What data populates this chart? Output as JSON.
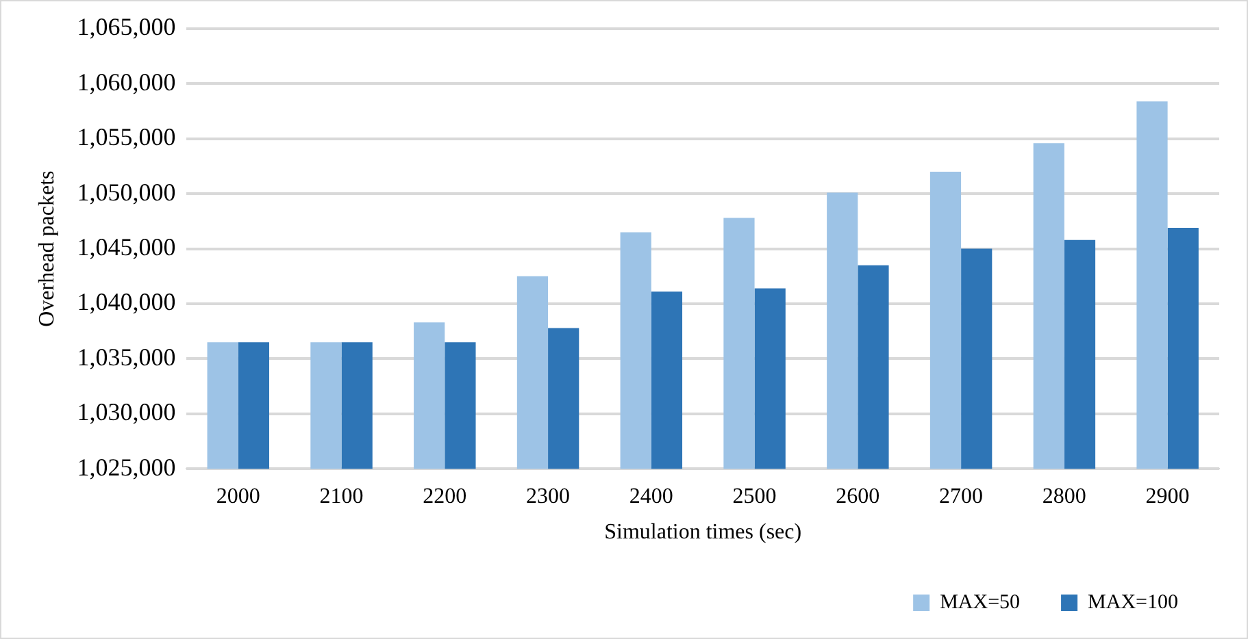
{
  "chart_data": {
    "type": "bar",
    "xlabel": "Simulation times (sec)",
    "ylabel": "Overhead packets",
    "categories": [
      "2000",
      "2100",
      "2200",
      "2300",
      "2400",
      "2500",
      "2600",
      "2700",
      "2800",
      "2900"
    ],
    "series": [
      {
        "name": "MAX=50",
        "color": "#9dc3e6",
        "values": [
          1036500,
          1036500,
          1038300,
          1042500,
          1046500,
          1047800,
          1050100,
          1052000,
          1054600,
          1058400
        ]
      },
      {
        "name": "MAX=100",
        "color": "#2e75b6",
        "values": [
          1036500,
          1036500,
          1036500,
          1037800,
          1041100,
          1041400,
          1043500,
          1045000,
          1045800,
          1046900
        ]
      }
    ],
    "ylim": [
      1025000,
      1065000
    ],
    "yticks": [
      {
        "value": 1025000,
        "label": "1,025,000"
      },
      {
        "value": 1030000,
        "label": "1,030,000"
      },
      {
        "value": 1035000,
        "label": "1,035,000"
      },
      {
        "value": 1040000,
        "label": "1,040,000"
      },
      {
        "value": 1045000,
        "label": "1,045,000"
      },
      {
        "value": 1050000,
        "label": "1,050,000"
      },
      {
        "value": 1055000,
        "label": "1,055,000"
      },
      {
        "value": 1060000,
        "label": "1,060,000"
      },
      {
        "value": 1065000,
        "label": "1,065,000"
      }
    ],
    "grid": "y",
    "legend": "bottom right"
  }
}
